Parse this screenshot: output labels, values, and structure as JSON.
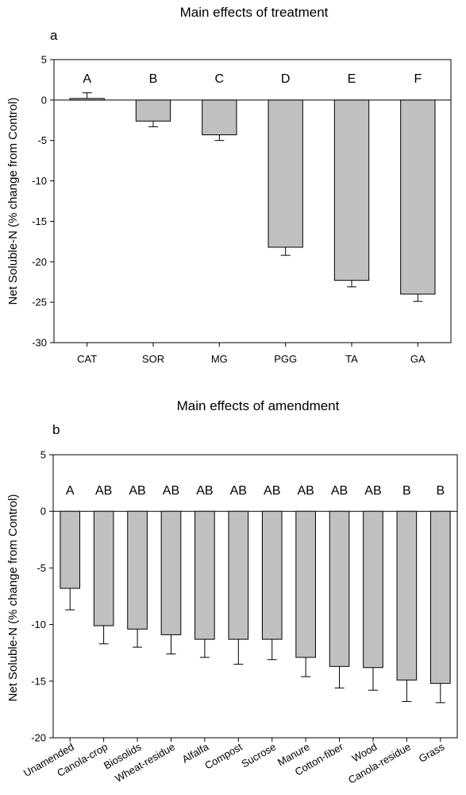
{
  "chart_data": [
    {
      "type": "bar",
      "panel": "a",
      "title": "Main effects of treatment",
      "xlabel": "",
      "ylabel": "Net Soluble-N  (% change from Control)",
      "ylim": [
        -30,
        5
      ],
      "yticks": [
        5,
        0,
        -5,
        -10,
        -15,
        -20,
        -25,
        -30
      ],
      "grid": false,
      "bar_color": "#c0c0c0",
      "categories": [
        "CAT",
        "SOR",
        "MG",
        "PGG",
        "TA",
        "GA"
      ],
      "values": [
        0.2,
        -2.6,
        -4.3,
        -18.2,
        -22.3,
        -24.0
      ],
      "errors": [
        0.7,
        0.7,
        0.7,
        1.0,
        0.8,
        0.9
      ],
      "letters": [
        "A",
        "B",
        "C",
        "D",
        "E",
        "F"
      ]
    },
    {
      "type": "bar",
      "panel": "b",
      "title": "Main effects of amendment",
      "xlabel": "",
      "ylabel": "Net Soluble-N  (% change from Control)",
      "ylim": [
        -20,
        5
      ],
      "yticks": [
        5,
        0,
        -5,
        -10,
        -15,
        -20
      ],
      "grid": false,
      "bar_color": "#c0c0c0",
      "categories": [
        "Unamended",
        "Canola-crop",
        "Biosolids",
        "Wheat-residue",
        "Alfalfa",
        "Compost",
        "Sucrose",
        "Manure",
        "Cotton-fiber",
        "Wood",
        "Canola-residue",
        "Grass"
      ],
      "values": [
        -6.8,
        -10.1,
        -10.4,
        -10.9,
        -11.3,
        -11.3,
        -11.3,
        -12.9,
        -13.7,
        -13.8,
        -14.9,
        -15.2
      ],
      "errors": [
        1.9,
        1.6,
        1.6,
        1.7,
        1.6,
        2.2,
        1.8,
        1.7,
        1.9,
        2.0,
        1.9,
        1.7
      ],
      "letters": [
        "A",
        "AB",
        "AB",
        "AB",
        "AB",
        "AB",
        "AB",
        "AB",
        "AB",
        "AB",
        "B",
        "B"
      ]
    }
  ]
}
